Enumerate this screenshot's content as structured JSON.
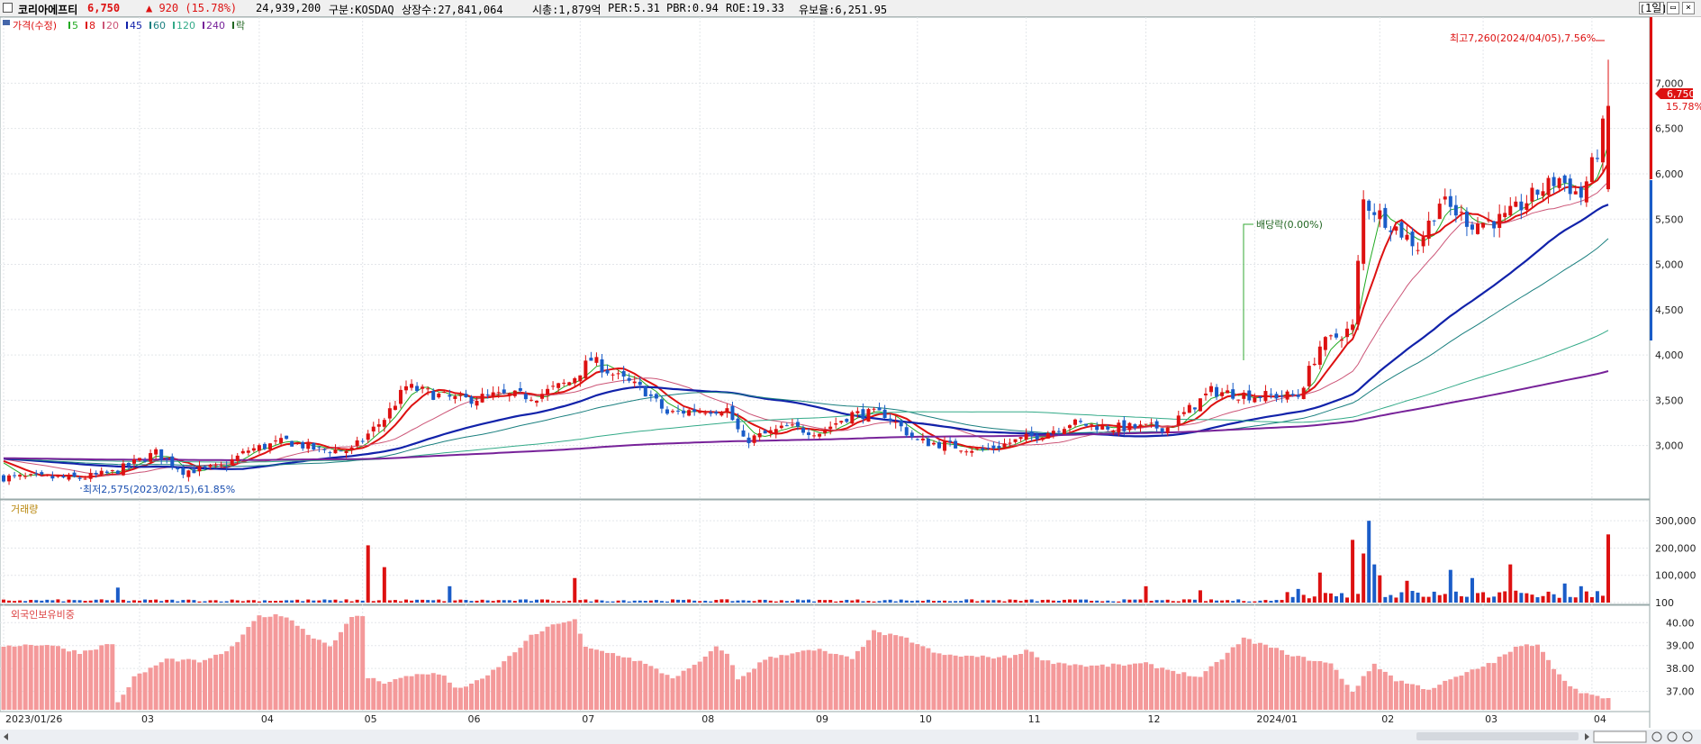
{
  "header": {
    "stock_name": "코리아에프티",
    "price": "6,750",
    "change": "▲ 920 (15.78%)",
    "volume": "24,939,200",
    "market": "구분:KOSDAQ",
    "listed": "상장수:27,841,064",
    "mktcap": "시총:1,879억",
    "per": "PER:5.31",
    "pbr": "PBR:0.94",
    "roe": "ROE:19.33",
    "float": "유보율:6,251.95",
    "period": "1일"
  },
  "legend": {
    "price": "가격(수정)",
    "ma": [
      "5",
      "8",
      "20",
      "45",
      "60",
      "120",
      "240"
    ],
    "ma_colors": [
      "#22aa22",
      "#dd1111",
      "#cc5577",
      "#1122aa",
      "#1a7f7f",
      "#33aa88",
      "#772299"
    ],
    "ex": "락"
  },
  "annotations": {
    "high": "최고7,260(2024/04/05),7.56%",
    "low": "최저2,575(2023/02/15),61.85%",
    "dividend": "배당락(0.00%)",
    "last_price": "6,750",
    "last_pct": "15.78%"
  },
  "volume_panel": {
    "title": "거래량"
  },
  "foreign_panel": {
    "title": "외국인보유비중"
  },
  "colors": {
    "up": "#dd1111",
    "down": "#1a5cc8",
    "foreign": "#f4999a",
    "ma5": "#22aa22",
    "ma8": "#dd1111",
    "ma20": "#cc5577",
    "ma45": "#1122aa",
    "ma60": "#1a7f7f",
    "ma120": "#33aa88",
    "ma240": "#772299"
  },
  "chart_data": [
    {
      "type": "candlestick",
      "title": "코리아에프티",
      "y_ticks": [
        3000,
        3500,
        4000,
        4500,
        5000,
        5500,
        6000,
        6500,
        7000
      ],
      "y_tick_labels": [
        "3,000",
        "3,500",
        "4,000",
        "4,500",
        "5,000",
        "5,500",
        "6,000",
        "6,500",
        "7,000"
      ],
      "ylim": [
        2450,
        7700
      ],
      "x_ticks": [
        "2023/01/26",
        "03",
        "04",
        "05",
        "06",
        "07",
        "08",
        "09",
        "10",
        "11",
        "12",
        "2024/01",
        "02",
        "03",
        "04"
      ],
      "x_tick_index": [
        0,
        25,
        47,
        66,
        85,
        106,
        128,
        149,
        168,
        188,
        210,
        230,
        253,
        272,
        292
      ],
      "n_days": 296,
      "price_path": [
        [
          0,
          2650
        ],
        [
          14,
          2640
        ],
        [
          20,
          2700
        ],
        [
          28,
          2920
        ],
        [
          33,
          2720
        ],
        [
          40,
          2760
        ],
        [
          45,
          2950
        ],
        [
          52,
          3050
        ],
        [
          58,
          2950
        ],
        [
          64,
          2950
        ],
        [
          70,
          3300
        ],
        [
          74,
          3650
        ],
        [
          80,
          3550
        ],
        [
          84,
          3500
        ],
        [
          90,
          3550
        ],
        [
          98,
          3550
        ],
        [
          104,
          3700
        ],
        [
          108,
          3950
        ],
        [
          113,
          3750
        ],
        [
          118,
          3600
        ],
        [
          122,
          3350
        ],
        [
          128,
          3400
        ],
        [
          133,
          3400
        ],
        [
          136,
          3050
        ],
        [
          144,
          3200
        ],
        [
          150,
          3150
        ],
        [
          156,
          3350
        ],
        [
          162,
          3350
        ],
        [
          168,
          3050
        ],
        [
          174,
          3000
        ],
        [
          180,
          2950
        ],
        [
          186,
          3050
        ],
        [
          192,
          3150
        ],
        [
          196,
          3250
        ],
        [
          204,
          3200
        ],
        [
          214,
          3200
        ],
        [
          222,
          3600
        ],
        [
          230,
          3550
        ],
        [
          238,
          3550
        ],
        [
          242,
          4100
        ],
        [
          248,
          4300
        ],
        [
          250,
          5700
        ],
        [
          256,
          5400
        ],
        [
          260,
          5200
        ],
        [
          264,
          5700
        ],
        [
          270,
          5450
        ],
        [
          276,
          5500
        ],
        [
          282,
          5800
        ],
        [
          286,
          5950
        ],
        [
          290,
          5750
        ],
        [
          293,
          6250
        ],
        [
          295,
          6750
        ]
      ],
      "high": {
        "value": 7260,
        "date": "2024/04/05",
        "pct": 7.56
      },
      "low": {
        "value": 2575,
        "date": "2023/02/15",
        "pct": 61.85
      },
      "last": 6750,
      "moving_averages": [
        5,
        8,
        20,
        45,
        60,
        120,
        240
      ]
    },
    {
      "type": "bar",
      "title": "거래량",
      "y_ticks": [
        100,
        100000,
        200000,
        300000
      ],
      "y_tick_labels": [
        "100",
        "100,000",
        "200,000",
        "300,000"
      ],
      "ylim": [
        0,
        360000
      ],
      "spikes": [
        [
          21,
          55000
        ],
        [
          67,
          210000
        ],
        [
          70,
          130000
        ],
        [
          82,
          60000
        ],
        [
          105,
          90000
        ],
        [
          210,
          60000
        ],
        [
          220,
          45000
        ],
        [
          238,
          50000
        ],
        [
          242,
          110000
        ],
        [
          248,
          230000
        ],
        [
          250,
          180000
        ],
        [
          251,
          300000
        ],
        [
          252,
          140000
        ],
        [
          253,
          100000
        ],
        [
          258,
          80000
        ],
        [
          266,
          120000
        ],
        [
          270,
          90000
        ],
        [
          277,
          140000
        ],
        [
          284,
          40000
        ],
        [
          287,
          70000
        ],
        [
          290,
          60000
        ],
        [
          295,
          250000
        ]
      ],
      "baseline": 8000
    },
    {
      "type": "bar",
      "title": "외국인보유비중",
      "y_ticks": [
        37,
        38,
        39,
        40
      ],
      "y_tick_labels": [
        "37.00",
        "38.00",
        "39.00",
        "40.00"
      ],
      "ylim": [
        36.2,
        40.6
      ],
      "path": [
        [
          0,
          39.0
        ],
        [
          8,
          39.05
        ],
        [
          14,
          38.7
        ],
        [
          20,
          39.1
        ],
        [
          21,
          36.5
        ],
        [
          24,
          37.6
        ],
        [
          30,
          38.4
        ],
        [
          37,
          38.3
        ],
        [
          42,
          38.9
        ],
        [
          47,
          40.3
        ],
        [
          52,
          40.3
        ],
        [
          56,
          39.5
        ],
        [
          60,
          39.0
        ],
        [
          64,
          40.2
        ],
        [
          66,
          40.3
        ],
        [
          67,
          37.6
        ],
        [
          70,
          37.4
        ],
        [
          77,
          37.8
        ],
        [
          81,
          37.7
        ],
        [
          83,
          37.1
        ],
        [
          88,
          37.5
        ],
        [
          93,
          38.5
        ],
        [
          97,
          39.4
        ],
        [
          102,
          40.0
        ],
        [
          105,
          40.1
        ],
        [
          107,
          38.9
        ],
        [
          113,
          38.6
        ],
        [
          117,
          38.3
        ],
        [
          123,
          37.6
        ],
        [
          127,
          38.1
        ],
        [
          131,
          38.9
        ],
        [
          133,
          38.7
        ],
        [
          135,
          37.5
        ],
        [
          140,
          38.4
        ],
        [
          145,
          38.7
        ],
        [
          150,
          38.8
        ],
        [
          156,
          38.4
        ],
        [
          160,
          39.6
        ],
        [
          166,
          39.3
        ],
        [
          172,
          38.6
        ],
        [
          180,
          38.5
        ],
        [
          185,
          38.5
        ],
        [
          188,
          38.8
        ],
        [
          192,
          38.3
        ],
        [
          200,
          38.1
        ],
        [
          210,
          38.2
        ],
        [
          220,
          37.6
        ],
        [
          228,
          39.3
        ],
        [
          232,
          39.0
        ],
        [
          238,
          38.5
        ],
        [
          244,
          38.2
        ],
        [
          248,
          37.0
        ],
        [
          252,
          38.2
        ],
        [
          256,
          37.5
        ],
        [
          262,
          37.1
        ],
        [
          268,
          37.7
        ],
        [
          274,
          38.3
        ],
        [
          278,
          38.9
        ],
        [
          282,
          39.1
        ],
        [
          286,
          37.7
        ],
        [
          290,
          36.9
        ],
        [
          295,
          36.7
        ]
      ]
    }
  ]
}
